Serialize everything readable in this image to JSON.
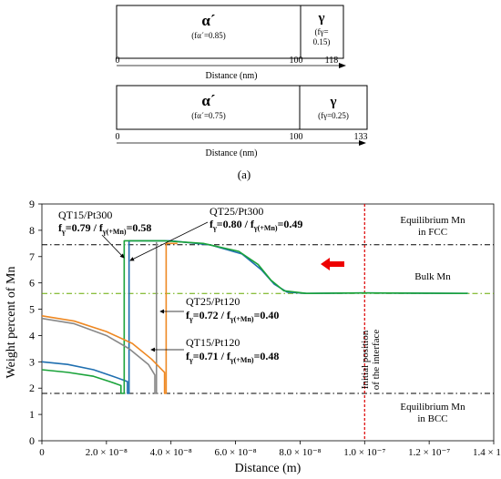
{
  "schematic": {
    "top": {
      "phase1": "α´",
      "phase1_frac": "(fα´=0.85)",
      "phase2": "γ",
      "phase2_frac_a": "(fγ=",
      "phase2_frac_b": "0.15)",
      "ticks": [
        "0",
        "100",
        "118"
      ],
      "axis_label": "Distance (nm)"
    },
    "bottom": {
      "phase1": "α´",
      "phase1_frac": "(fα´=0.75)",
      "phase2": "γ",
      "phase2_frac": "(fγ=0.25)",
      "ticks": [
        "0",
        "100",
        "133"
      ],
      "axis_label": "Distance (nm)"
    },
    "panel_label": "(a)"
  },
  "chart_data": {
    "type": "line",
    "xlabel": "Distance (m)",
    "ylabel": "Weight percent of Mn",
    "xlim": [
      0,
      1.4e-07
    ],
    "ylim": [
      0,
      9
    ],
    "xticks": [
      "0",
      "2.0 × 10⁻⁸",
      "4.0 × 10⁻⁸",
      "6.0 × 10⁻⁸",
      "8.0 × 10⁻⁸",
      "1.0 × 10⁻⁷",
      "1.2 × 10⁻⁷",
      "1.4 × 10⁻⁷"
    ],
    "yticks": [
      "0",
      "1",
      "2",
      "3",
      "4",
      "5",
      "6",
      "7",
      "8",
      "9"
    ],
    "reference_lines": [
      {
        "y": 7.45,
        "label_1": "Equilibrium Mn",
        "label_2": "in FCC",
        "color": "#000000"
      },
      {
        "y": 5.6,
        "label_1": "Bulk Mn",
        "color": "#66aa00"
      },
      {
        "y": 1.8,
        "label_1": "Equilibrium Mn",
        "label_2": "in BCC",
        "color": "#000000"
      }
    ],
    "interface_line": {
      "x": 1e-07,
      "label_1": "Initial position",
      "label_2": "of the interface",
      "color": "#dd0000"
    },
    "series": [
      {
        "color": "#1f6fb0",
        "points": [
          [
            0,
            3.0
          ],
          [
            8e-09,
            2.9
          ],
          [
            1.6e-08,
            2.7
          ],
          [
            2.2e-08,
            2.45
          ],
          [
            2.65e-08,
            2.25
          ],
          [
            2.65e-08,
            1.8
          ],
          [
            2.7e-08,
            1.8
          ],
          [
            2.7e-08,
            7.6
          ],
          [
            4e-08,
            7.6
          ],
          [
            5.2e-08,
            7.45
          ],
          [
            6.2e-08,
            7.1
          ],
          [
            6.8e-08,
            6.5
          ],
          [
            7.2e-08,
            5.95
          ],
          [
            7.6e-08,
            5.65
          ],
          [
            8.2e-08,
            5.6
          ],
          [
            1e-07,
            5.62
          ],
          [
            1.32e-07,
            5.6
          ]
        ]
      },
      {
        "color": "#1aa33a",
        "points": [
          [
            0,
            2.7
          ],
          [
            8e-09,
            2.6
          ],
          [
            1.6e-08,
            2.45
          ],
          [
            2.1e-08,
            2.25
          ],
          [
            2.45e-08,
            2.1
          ],
          [
            2.45e-08,
            1.8
          ],
          [
            2.55e-08,
            1.8
          ],
          [
            2.55e-08,
            7.6
          ],
          [
            3.8e-08,
            7.6
          ],
          [
            5e-08,
            7.5
          ],
          [
            6.1e-08,
            7.2
          ],
          [
            6.7e-08,
            6.7
          ],
          [
            7.1e-08,
            6.1
          ],
          [
            7.5e-08,
            5.7
          ],
          [
            8.2e-08,
            5.6
          ],
          [
            1e-07,
            5.62
          ],
          [
            1.32e-07,
            5.6
          ]
        ]
      },
      {
        "color": "#888888",
        "points": [
          [
            0,
            4.65
          ],
          [
            1e-08,
            4.45
          ],
          [
            2e-08,
            4.0
          ],
          [
            2.7e-08,
            3.5
          ],
          [
            3.3e-08,
            2.9
          ],
          [
            3.5e-08,
            2.5
          ],
          [
            3.5e-08,
            1.8
          ],
          [
            3.55e-08,
            1.8
          ],
          [
            3.55e-08,
            7.55
          ]
        ]
      },
      {
        "color": "#ee8822",
        "points": [
          [
            0,
            4.75
          ],
          [
            1e-08,
            4.55
          ],
          [
            2e-08,
            4.15
          ],
          [
            2.8e-08,
            3.7
          ],
          [
            3.4e-08,
            3.1
          ],
          [
            3.8e-08,
            2.6
          ],
          [
            3.8e-08,
            1.8
          ],
          [
            3.85e-08,
            1.8
          ],
          [
            3.85e-08,
            7.5
          ],
          [
            4.2e-08,
            7.5
          ]
        ]
      }
    ],
    "annotations": [
      {
        "name": "QT15/Pt300",
        "l1": "f",
        "s1": "γ",
        "v1": "=0.79 / f",
        "s2": "γ(+Mn)",
        "v2": "=0.58"
      },
      {
        "name": "QT25/Pt300",
        "l1": "f",
        "s1": "γ",
        "v1": "=0.80 / f",
        "s2": "γ(+Mn)",
        "v2": "=0.49"
      },
      {
        "name": "QT25/Pt120",
        "l1": "f",
        "s1": "γ",
        "v1": "=0.72 / f",
        "s2": "γ(+Mn)",
        "v2": "=0.40"
      },
      {
        "name": "QT15/Pt120",
        "l1": "f",
        "s1": "γ",
        "v1": "=0.71 / f",
        "s2": "γ(+Mn)",
        "v2": "=0.48"
      }
    ]
  }
}
